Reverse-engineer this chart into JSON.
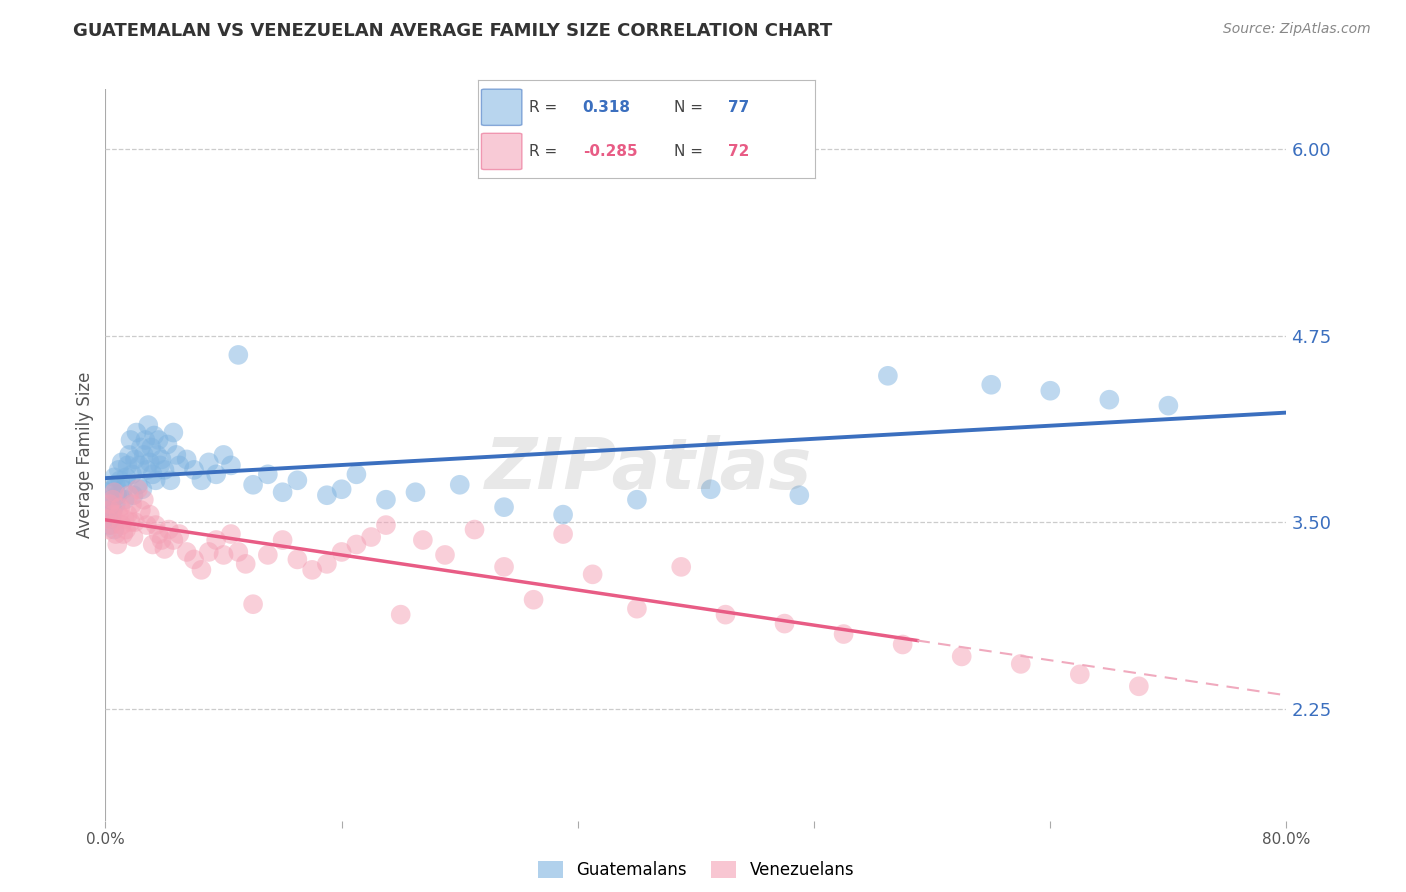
{
  "title": "GUATEMALAN VS VENEZUELAN AVERAGE FAMILY SIZE CORRELATION CHART",
  "source": "Source: ZipAtlas.com",
  "ylabel": "Average Family Size",
  "right_yticks": [
    6.0,
    4.75,
    3.5,
    2.25
  ],
  "watermark": "ZIPatlas",
  "guatemalan_color": "#7EB3E0",
  "venezuelan_color": "#F4A0B5",
  "guatemalan_line_color": "#3B6FBF",
  "venezuelan_line_color": "#E85C85",
  "venezuelan_dash_color": "#F0AABE",
  "xmin": 0.0,
  "xmax": 0.8,
  "ymin": 1.5,
  "ymax": 6.4,
  "guatemalan_R": 0.318,
  "guatemalan_N": 77,
  "venezuelan_R": -0.285,
  "venezuelan_N": 72,
  "guatemalan_x": [
    0.001,
    0.002,
    0.002,
    0.003,
    0.003,
    0.004,
    0.005,
    0.005,
    0.006,
    0.006,
    0.007,
    0.007,
    0.008,
    0.009,
    0.01,
    0.011,
    0.012,
    0.013,
    0.014,
    0.015,
    0.016,
    0.017,
    0.018,
    0.019,
    0.02,
    0.021,
    0.022,
    0.023,
    0.024,
    0.025,
    0.026,
    0.027,
    0.028,
    0.029,
    0.03,
    0.031,
    0.032,
    0.033,
    0.034,
    0.035,
    0.036,
    0.037,
    0.038,
    0.04,
    0.042,
    0.044,
    0.046,
    0.048,
    0.05,
    0.055,
    0.06,
    0.065,
    0.07,
    0.075,
    0.08,
    0.085,
    0.09,
    0.1,
    0.11,
    0.12,
    0.13,
    0.15,
    0.16,
    0.17,
    0.19,
    0.21,
    0.24,
    0.27,
    0.31,
    0.36,
    0.41,
    0.47,
    0.53,
    0.6,
    0.64,
    0.68,
    0.72
  ],
  "guatemalan_y": [
    3.6,
    3.55,
    3.7,
    3.48,
    3.65,
    3.52,
    3.58,
    3.72,
    3.8,
    3.45,
    3.62,
    3.75,
    3.68,
    3.85,
    3.78,
    3.9,
    3.72,
    3.65,
    3.8,
    3.88,
    3.95,
    4.05,
    3.82,
    3.68,
    3.92,
    4.1,
    3.75,
    3.88,
    4.0,
    3.72,
    3.95,
    4.05,
    3.85,
    4.15,
    3.9,
    4.0,
    3.82,
    4.08,
    3.78,
    3.95,
    4.05,
    3.88,
    3.92,
    3.85,
    4.02,
    3.78,
    4.1,
    3.95,
    3.88,
    3.92,
    3.85,
    3.78,
    3.9,
    3.82,
    3.95,
    3.88,
    4.62,
    3.75,
    3.82,
    3.7,
    3.78,
    3.68,
    3.72,
    3.82,
    3.65,
    3.7,
    3.75,
    3.6,
    3.55,
    3.65,
    3.72,
    3.68,
    4.48,
    4.42,
    4.38,
    4.32,
    4.28
  ],
  "venezuelan_x": [
    0.001,
    0.002,
    0.003,
    0.003,
    0.004,
    0.005,
    0.005,
    0.006,
    0.007,
    0.008,
    0.009,
    0.01,
    0.011,
    0.012,
    0.013,
    0.014,
    0.015,
    0.016,
    0.017,
    0.018,
    0.019,
    0.02,
    0.022,
    0.024,
    0.026,
    0.028,
    0.03,
    0.032,
    0.034,
    0.036,
    0.038,
    0.04,
    0.043,
    0.046,
    0.05,
    0.055,
    0.06,
    0.065,
    0.07,
    0.075,
    0.08,
    0.085,
    0.09,
    0.095,
    0.1,
    0.11,
    0.12,
    0.13,
    0.14,
    0.15,
    0.16,
    0.17,
    0.18,
    0.19,
    0.2,
    0.215,
    0.23,
    0.25,
    0.27,
    0.29,
    0.31,
    0.33,
    0.36,
    0.39,
    0.42,
    0.46,
    0.5,
    0.54,
    0.58,
    0.62,
    0.66,
    0.7
  ],
  "venezuelan_y": [
    3.52,
    3.45,
    3.58,
    3.62,
    3.48,
    3.55,
    3.65,
    3.7,
    3.42,
    3.35,
    3.55,
    3.6,
    3.48,
    3.42,
    3.52,
    3.45,
    3.55,
    3.68,
    3.5,
    3.62,
    3.4,
    3.5,
    3.72,
    3.58,
    3.65,
    3.48,
    3.55,
    3.35,
    3.48,
    3.42,
    3.38,
    3.32,
    3.45,
    3.38,
    3.42,
    3.3,
    3.25,
    3.18,
    3.3,
    3.38,
    3.28,
    3.42,
    3.3,
    3.22,
    2.95,
    3.28,
    3.38,
    3.25,
    3.18,
    3.22,
    3.3,
    3.35,
    3.4,
    3.48,
    2.88,
    3.38,
    3.28,
    3.45,
    3.2,
    2.98,
    3.42,
    3.15,
    2.92,
    3.2,
    2.88,
    2.82,
    2.75,
    2.68,
    2.6,
    2.55,
    2.48,
    2.4
  ]
}
